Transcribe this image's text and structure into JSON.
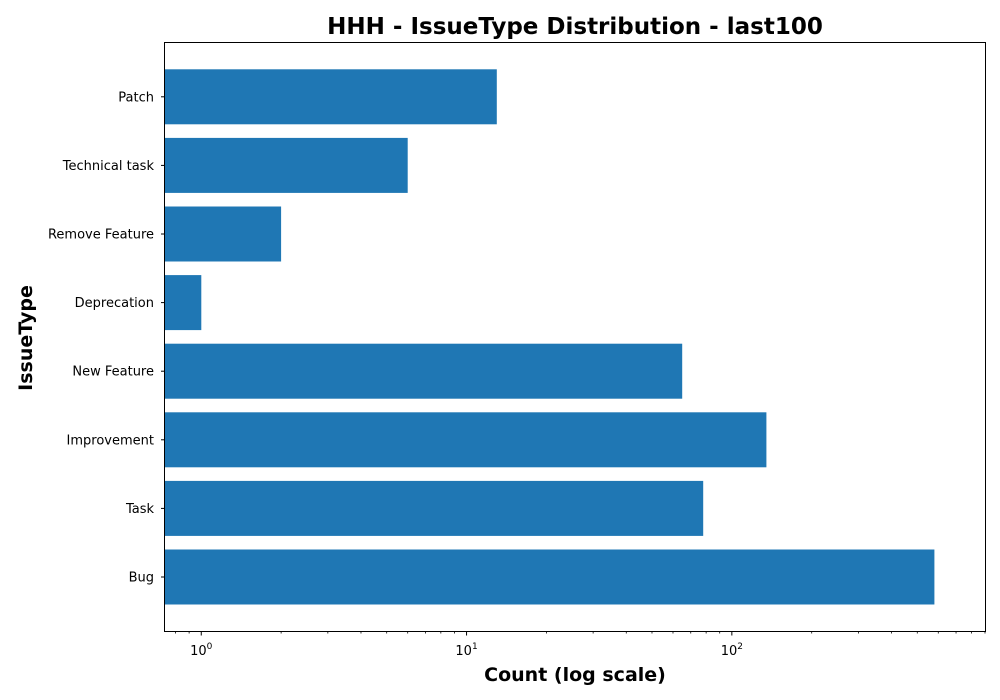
{
  "chart_data": {
    "type": "bar",
    "orientation": "horizontal",
    "title": "HHH - IssueType Distribution - last100",
    "xlabel": "Count (log scale)",
    "ylabel": "IssueType",
    "x_scale": "log",
    "xlim": [
      0.73,
      900
    ],
    "categories": [
      "Bug",
      "Task",
      "Improvement",
      "New Feature",
      "Deprecation",
      "Remove Feature",
      "Technical task",
      "Patch"
    ],
    "values": [
      580,
      78,
      135,
      65,
      1,
      2,
      6,
      13
    ],
    "x_ticks": [
      {
        "base": "10",
        "exp": "0",
        "value": 1
      },
      {
        "base": "10",
        "exp": "1",
        "value": 10
      },
      {
        "base": "10",
        "exp": "2",
        "value": 100
      }
    ],
    "bar_color": "#1f77b4",
    "grid": false
  }
}
